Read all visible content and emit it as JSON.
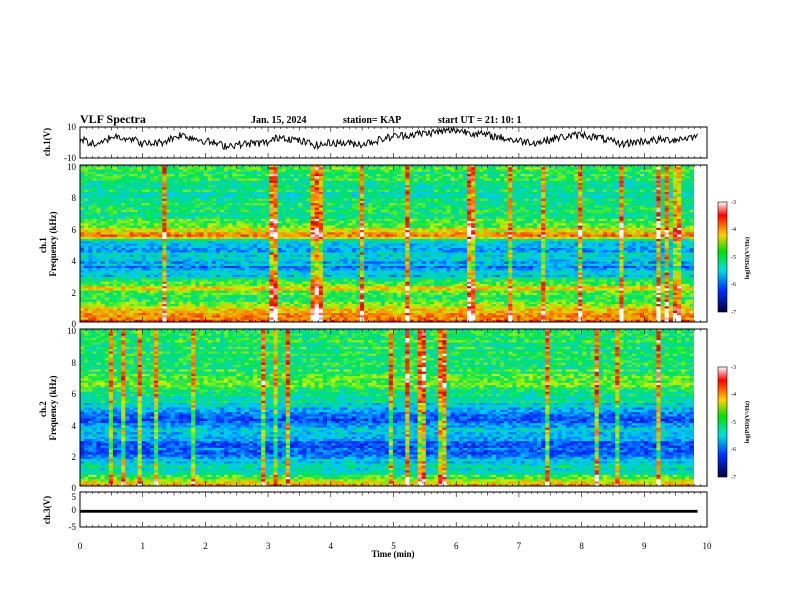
{
  "header": {
    "title": "VLF Spectra",
    "date": "Jan. 15, 2024",
    "station": "station= KAP",
    "start_ut": "start  UT =  21: 10: 1"
  },
  "chart_data": [
    {
      "type": "line",
      "panel": "ch1-waveform",
      "ylabel": "ch.1(V)",
      "ylim": [
        -10,
        10
      ],
      "yticks": [
        "10",
        "-10"
      ],
      "xlim": [
        0,
        10
      ],
      "x_extent": 9.85,
      "color": "#000000",
      "series_description_points": [
        [
          0.0,
          2
        ],
        [
          0.3,
          -2
        ],
        [
          0.5,
          4
        ],
        [
          0.8,
          3
        ],
        [
          1.0,
          -1
        ],
        [
          1.3,
          0
        ],
        [
          1.6,
          5
        ],
        [
          1.8,
          3
        ],
        [
          2.0,
          1
        ],
        [
          2.3,
          -2
        ],
        [
          2.6,
          -1
        ],
        [
          3.0,
          0
        ],
        [
          3.2,
          4
        ],
        [
          3.5,
          1
        ],
        [
          3.8,
          -2
        ],
        [
          4.0,
          0
        ],
        [
          4.5,
          -1
        ],
        [
          4.8,
          2
        ],
        [
          5.0,
          4
        ],
        [
          5.5,
          6
        ],
        [
          6.0,
          8
        ],
        [
          6.3,
          6
        ],
        [
          6.6,
          4
        ],
        [
          7.0,
          1
        ],
        [
          7.3,
          0
        ],
        [
          7.6,
          3
        ],
        [
          8.0,
          5
        ],
        [
          8.3,
          3
        ],
        [
          8.6,
          -1
        ],
        [
          9.0,
          1
        ],
        [
          9.5,
          2
        ],
        [
          9.85,
          4
        ]
      ]
    },
    {
      "type": "heatmap",
      "panel": "ch1-spectrogram",
      "ylabel": "ch.1\nFrequency (kHz)",
      "ylim": [
        0,
        10
      ],
      "yticks": [
        "0",
        "2",
        "4",
        "6",
        "8",
        "10"
      ],
      "xlim": [
        0,
        10
      ],
      "x_extent": 9.85,
      "colorbar": {
        "label": "log(PSD)(V²/Hz)",
        "range": [
          -7,
          -3
        ],
        "ticks": [
          "-3",
          "-4",
          "-5",
          "-6",
          "-7"
        ]
      },
      "band_levels": [
        {
          "f": 0.3,
          "level": -4.0
        },
        {
          "f": 0.8,
          "level": -4.3
        },
        {
          "f": 1.5,
          "level": -5.0
        },
        {
          "f": 2.2,
          "level": -4.4
        },
        {
          "f": 2.8,
          "level": -5.4
        },
        {
          "f": 3.5,
          "level": -5.8
        },
        {
          "f": 4.2,
          "level": -5.5
        },
        {
          "f": 5.0,
          "level": -5.8
        },
        {
          "f": 5.5,
          "level": -4.0
        },
        {
          "f": 6.5,
          "level": -5.0
        },
        {
          "f": 7.5,
          "level": -5.2
        },
        {
          "f": 8.5,
          "level": -5.1
        },
        {
          "f": 9.5,
          "level": -5.0
        }
      ]
    },
    {
      "type": "heatmap",
      "panel": "ch2-spectrogram",
      "ylabel": "ch.2\nFrequency (kHz)",
      "ylim": [
        0,
        10
      ],
      "yticks": [
        "0",
        "2",
        "4",
        "6",
        "8",
        "10"
      ],
      "xlim": [
        0,
        10
      ],
      "x_extent": 9.85,
      "colorbar": {
        "label": "log(PSD)(V²/Hz)",
        "range": [
          -7,
          -3
        ],
        "ticks": [
          "-3",
          "-4",
          "-5",
          "-6",
          "-7"
        ]
      },
      "band_levels": [
        {
          "f": 0.3,
          "level": -4.6
        },
        {
          "f": 0.8,
          "level": -5.2
        },
        {
          "f": 1.5,
          "level": -5.5
        },
        {
          "f": 2.2,
          "level": -6.2
        },
        {
          "f": 2.8,
          "level": -6.0
        },
        {
          "f": 3.5,
          "level": -5.4
        },
        {
          "f": 4.2,
          "level": -6.0
        },
        {
          "f": 5.0,
          "level": -5.5
        },
        {
          "f": 5.5,
          "level": -5.3
        },
        {
          "f": 6.5,
          "level": -4.8
        },
        {
          "f": 7.5,
          "level": -5.0
        },
        {
          "f": 8.5,
          "level": -5.1
        },
        {
          "f": 9.5,
          "level": -5.0
        }
      ]
    },
    {
      "type": "line",
      "panel": "ch3-waveform",
      "ylabel": "ch.3(V)",
      "ylim": [
        -5,
        5
      ],
      "yticks": [
        "5",
        "0",
        "-5"
      ],
      "xlim": [
        0,
        10
      ],
      "x_extent": 9.85,
      "band": [
        -0.9,
        -0.1
      ],
      "color": "#000000"
    }
  ],
  "xaxis": {
    "label": "Time  (min)",
    "ticks": [
      "0",
      "1",
      "2",
      "3",
      "4",
      "5",
      "6",
      "7",
      "8",
      "9",
      "10"
    ]
  }
}
